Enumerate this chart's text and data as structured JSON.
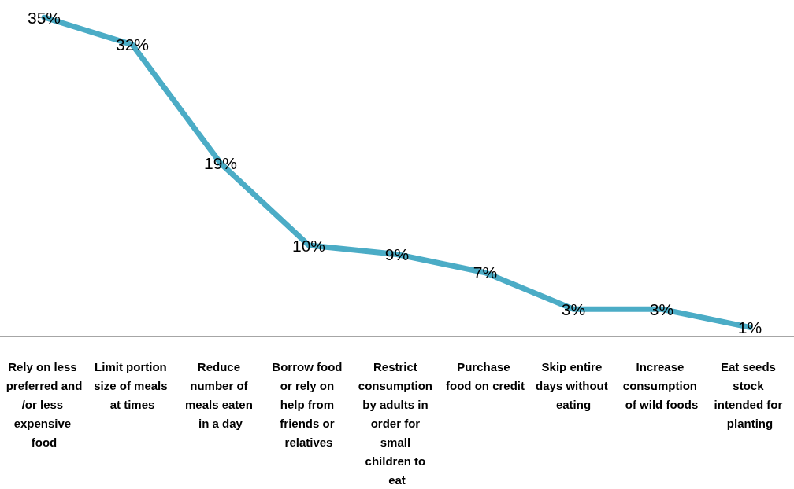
{
  "chart_data": {
    "type": "line",
    "categories": [
      "Rely on less preferred and/or less expensive food",
      "Limit portion size of meals at times",
      "Reduce number of meals eaten in a day",
      "Borrow food or rely on help from friends or relatives",
      "Restrict consumption by adults in order for small children to eat",
      "Purchase food on credit",
      "Skip entire days without eating",
      "Increase consumption of wild foods",
      "Eat seeds stock intended for planting"
    ],
    "series": [
      {
        "color": "#4bacc6",
        "values": [
          35,
          32,
          19,
          10,
          9,
          7,
          3,
          3,
          1
        ],
        "value_labels": [
          "35%",
          "32%",
          "19%",
          "10%",
          "9%",
          "7%",
          "3%",
          "3%",
          "1%"
        ]
      }
    ],
    "marker": "none",
    "grid": false
  }
}
